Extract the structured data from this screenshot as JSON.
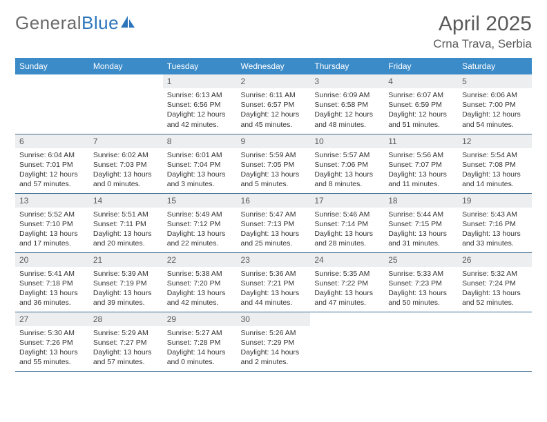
{
  "logo": {
    "text1": "General",
    "text2": "Blue"
  },
  "header": {
    "month_title": "April 2025",
    "location": "Crna Trava, Serbia"
  },
  "colors": {
    "header_bg": "#3b8bc9",
    "header_text": "#ffffff",
    "daynum_bg": "#eceeef",
    "daynum_text": "#5a5a5a",
    "row_border": "#3b6a8f",
    "body_text": "#333333",
    "title_text": "#5a5a5a",
    "logo_gray": "#6a6a6a",
    "logo_blue": "#2d76bb",
    "page_bg": "#ffffff"
  },
  "day_headers": [
    "Sunday",
    "Monday",
    "Tuesday",
    "Wednesday",
    "Thursday",
    "Friday",
    "Saturday"
  ],
  "weeks": [
    [
      null,
      null,
      {
        "day": "1",
        "sunrise": "Sunrise: 6:13 AM",
        "sunset": "Sunset: 6:56 PM",
        "daylight": "Daylight: 12 hours and 42 minutes."
      },
      {
        "day": "2",
        "sunrise": "Sunrise: 6:11 AM",
        "sunset": "Sunset: 6:57 PM",
        "daylight": "Daylight: 12 hours and 45 minutes."
      },
      {
        "day": "3",
        "sunrise": "Sunrise: 6:09 AM",
        "sunset": "Sunset: 6:58 PM",
        "daylight": "Daylight: 12 hours and 48 minutes."
      },
      {
        "day": "4",
        "sunrise": "Sunrise: 6:07 AM",
        "sunset": "Sunset: 6:59 PM",
        "daylight": "Daylight: 12 hours and 51 minutes."
      },
      {
        "day": "5",
        "sunrise": "Sunrise: 6:06 AM",
        "sunset": "Sunset: 7:00 PM",
        "daylight": "Daylight: 12 hours and 54 minutes."
      }
    ],
    [
      {
        "day": "6",
        "sunrise": "Sunrise: 6:04 AM",
        "sunset": "Sunset: 7:01 PM",
        "daylight": "Daylight: 12 hours and 57 minutes."
      },
      {
        "day": "7",
        "sunrise": "Sunrise: 6:02 AM",
        "sunset": "Sunset: 7:03 PM",
        "daylight": "Daylight: 13 hours and 0 minutes."
      },
      {
        "day": "8",
        "sunrise": "Sunrise: 6:01 AM",
        "sunset": "Sunset: 7:04 PM",
        "daylight": "Daylight: 13 hours and 3 minutes."
      },
      {
        "day": "9",
        "sunrise": "Sunrise: 5:59 AM",
        "sunset": "Sunset: 7:05 PM",
        "daylight": "Daylight: 13 hours and 5 minutes."
      },
      {
        "day": "10",
        "sunrise": "Sunrise: 5:57 AM",
        "sunset": "Sunset: 7:06 PM",
        "daylight": "Daylight: 13 hours and 8 minutes."
      },
      {
        "day": "11",
        "sunrise": "Sunrise: 5:56 AM",
        "sunset": "Sunset: 7:07 PM",
        "daylight": "Daylight: 13 hours and 11 minutes."
      },
      {
        "day": "12",
        "sunrise": "Sunrise: 5:54 AM",
        "sunset": "Sunset: 7:08 PM",
        "daylight": "Daylight: 13 hours and 14 minutes."
      }
    ],
    [
      {
        "day": "13",
        "sunrise": "Sunrise: 5:52 AM",
        "sunset": "Sunset: 7:10 PM",
        "daylight": "Daylight: 13 hours and 17 minutes."
      },
      {
        "day": "14",
        "sunrise": "Sunrise: 5:51 AM",
        "sunset": "Sunset: 7:11 PM",
        "daylight": "Daylight: 13 hours and 20 minutes."
      },
      {
        "day": "15",
        "sunrise": "Sunrise: 5:49 AM",
        "sunset": "Sunset: 7:12 PM",
        "daylight": "Daylight: 13 hours and 22 minutes."
      },
      {
        "day": "16",
        "sunrise": "Sunrise: 5:47 AM",
        "sunset": "Sunset: 7:13 PM",
        "daylight": "Daylight: 13 hours and 25 minutes."
      },
      {
        "day": "17",
        "sunrise": "Sunrise: 5:46 AM",
        "sunset": "Sunset: 7:14 PM",
        "daylight": "Daylight: 13 hours and 28 minutes."
      },
      {
        "day": "18",
        "sunrise": "Sunrise: 5:44 AM",
        "sunset": "Sunset: 7:15 PM",
        "daylight": "Daylight: 13 hours and 31 minutes."
      },
      {
        "day": "19",
        "sunrise": "Sunrise: 5:43 AM",
        "sunset": "Sunset: 7:16 PM",
        "daylight": "Daylight: 13 hours and 33 minutes."
      }
    ],
    [
      {
        "day": "20",
        "sunrise": "Sunrise: 5:41 AM",
        "sunset": "Sunset: 7:18 PM",
        "daylight": "Daylight: 13 hours and 36 minutes."
      },
      {
        "day": "21",
        "sunrise": "Sunrise: 5:39 AM",
        "sunset": "Sunset: 7:19 PM",
        "daylight": "Daylight: 13 hours and 39 minutes."
      },
      {
        "day": "22",
        "sunrise": "Sunrise: 5:38 AM",
        "sunset": "Sunset: 7:20 PM",
        "daylight": "Daylight: 13 hours and 42 minutes."
      },
      {
        "day": "23",
        "sunrise": "Sunrise: 5:36 AM",
        "sunset": "Sunset: 7:21 PM",
        "daylight": "Daylight: 13 hours and 44 minutes."
      },
      {
        "day": "24",
        "sunrise": "Sunrise: 5:35 AM",
        "sunset": "Sunset: 7:22 PM",
        "daylight": "Daylight: 13 hours and 47 minutes."
      },
      {
        "day": "25",
        "sunrise": "Sunrise: 5:33 AM",
        "sunset": "Sunset: 7:23 PM",
        "daylight": "Daylight: 13 hours and 50 minutes."
      },
      {
        "day": "26",
        "sunrise": "Sunrise: 5:32 AM",
        "sunset": "Sunset: 7:24 PM",
        "daylight": "Daylight: 13 hours and 52 minutes."
      }
    ],
    [
      {
        "day": "27",
        "sunrise": "Sunrise: 5:30 AM",
        "sunset": "Sunset: 7:26 PM",
        "daylight": "Daylight: 13 hours and 55 minutes."
      },
      {
        "day": "28",
        "sunrise": "Sunrise: 5:29 AM",
        "sunset": "Sunset: 7:27 PM",
        "daylight": "Daylight: 13 hours and 57 minutes."
      },
      {
        "day": "29",
        "sunrise": "Sunrise: 5:27 AM",
        "sunset": "Sunset: 7:28 PM",
        "daylight": "Daylight: 14 hours and 0 minutes."
      },
      {
        "day": "30",
        "sunrise": "Sunrise: 5:26 AM",
        "sunset": "Sunset: 7:29 PM",
        "daylight": "Daylight: 14 hours and 2 minutes."
      },
      null,
      null,
      null
    ]
  ]
}
